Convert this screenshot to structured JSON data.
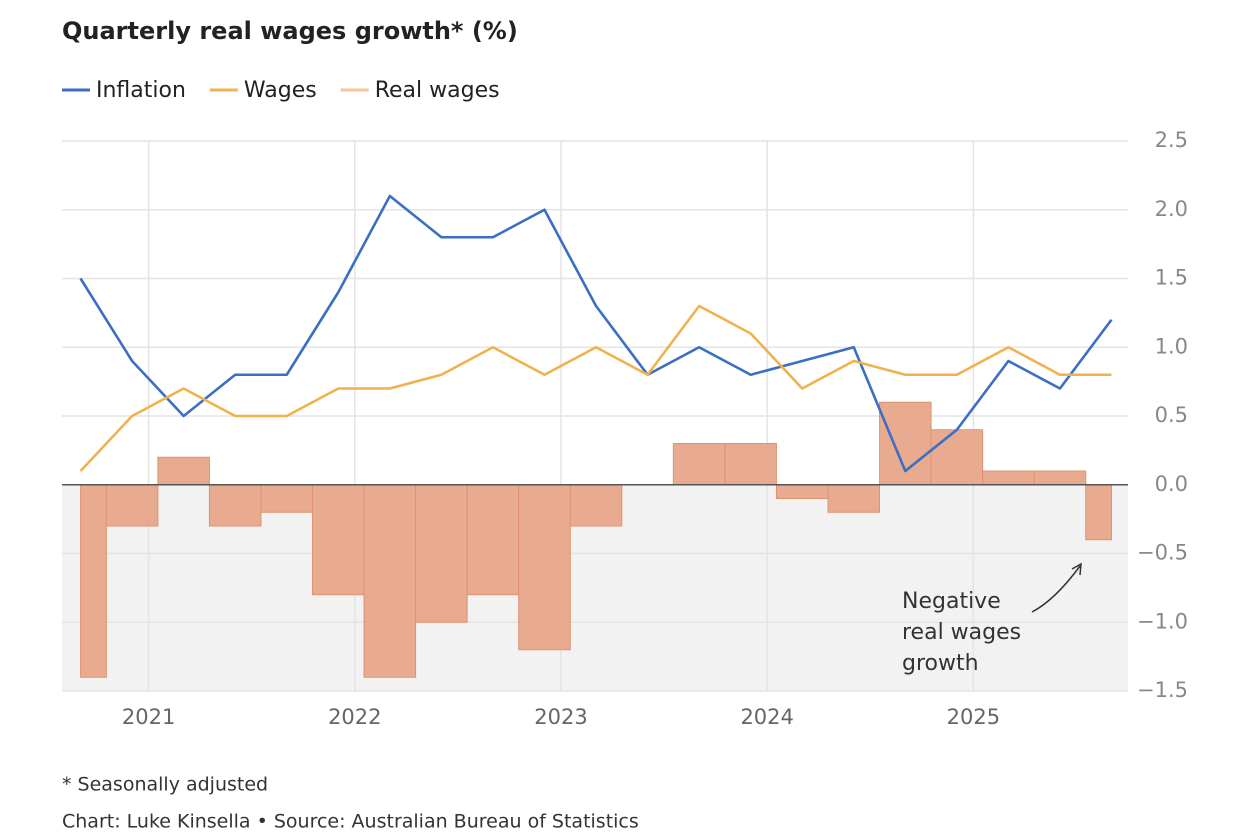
{
  "chart_data": {
    "type": "line",
    "title": "Quarterly real wages growth* (%)",
    "note": "* Seasonally adjusted",
    "source": "Chart: Luke Kinsella • Source: Australian Bureau of Statistics",
    "annotation": [
      "Negative",
      "real wages",
      "growth"
    ],
    "x": [
      2020.67,
      2020.92,
      2021.17,
      2021.42,
      2021.67,
      2021.92,
      2022.17,
      2022.42,
      2022.67,
      2022.92,
      2023.17,
      2023.42,
      2023.67,
      2023.92,
      2024.17,
      2024.42,
      2024.67,
      2024.92,
      2025.17,
      2025.42,
      2025.67
    ],
    "xlim": [
      2020.58,
      2025.75
    ],
    "xticks": [
      2021,
      2022,
      2023,
      2024,
      2025
    ],
    "ylim": [
      -1.5,
      2.5
    ],
    "yticks": [
      {
        "value": -1.5,
        "label": "−1.5"
      },
      {
        "value": -1,
        "label": "−1.0"
      },
      {
        "value": -0.5,
        "label": "−0.5"
      },
      {
        "value": 0,
        "label": "0.0"
      },
      {
        "value": 0.5,
        "label": "0.5"
      },
      {
        "value": 1,
        "label": "1.0"
      },
      {
        "value": 1.5,
        "label": "1.5"
      },
      {
        "value": 2,
        "label": "2.0"
      },
      {
        "value": 2.5,
        "label": "2.5"
      }
    ],
    "grid": true,
    "series": [
      {
        "name": "Inflation",
        "type": "line",
        "color": "#3a6fc4",
        "values": [
          1.5,
          0.9,
          0.5,
          0.8,
          0.8,
          1.4,
          2.1,
          1.8,
          1.8,
          2.0,
          1.3,
          0.8,
          1.0,
          0.8,
          0.9,
          1.0,
          0.1,
          0.4,
          0.9,
          0.7,
          1.2
        ]
      },
      {
        "name": "Wages",
        "type": "line",
        "color": "#efb24e",
        "values": [
          0.1,
          0.5,
          0.7,
          0.5,
          0.5,
          0.7,
          0.7,
          0.8,
          1.0,
          0.8,
          1.0,
          0.8,
          1.3,
          1.1,
          0.7,
          0.9,
          0.8,
          0.8,
          1.0,
          0.8,
          0.8
        ]
      },
      {
        "name": "Real wages",
        "type": "bar",
        "color": "#f3c79a",
        "values": [
          -1.4,
          -0.3,
          0.2,
          -0.3,
          -0.2,
          -0.8,
          -1.4,
          -1.0,
          -0.8,
          -1.2,
          -0.3,
          0.0,
          0.3,
          0.3,
          -0.1,
          -0.2,
          0.6,
          0.4,
          0.1,
          0.1,
          -0.4
        ]
      }
    ]
  }
}
